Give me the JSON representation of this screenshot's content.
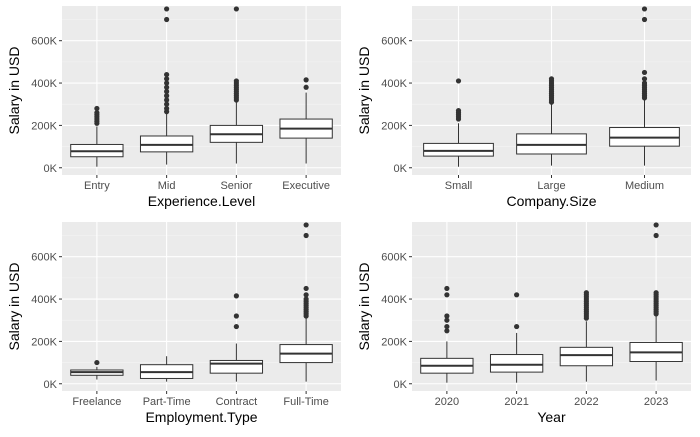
{
  "chart_data": [
    {
      "type": "box",
      "xlabel": "Experience.Level",
      "ylabel": "Salary in USD",
      "ylim": [
        0,
        760000
      ],
      "yticks": [
        0,
        200000,
        400000,
        600000
      ],
      "ytick_labels": [
        "0K",
        "200K",
        "400K",
        "600K"
      ],
      "grid": true,
      "categories": [
        "Entry",
        "Mid",
        "Senior",
        "Executive"
      ],
      "boxes": [
        {
          "min": 5000,
          "q1": 52000,
          "median": 78000,
          "q3": 110000,
          "max": 195000,
          "outliers": [
            210000,
            220000,
            230000,
            240000,
            250000,
            260000,
            280000
          ]
        },
        {
          "min": 15000,
          "q1": 75000,
          "median": 108000,
          "q3": 150000,
          "max": 255000,
          "outliers": [
            265000,
            280000,
            300000,
            320000,
            340000,
            360000,
            380000,
            400000,
            420000,
            440000,
            700000,
            750000
          ]
        },
        {
          "min": 20000,
          "q1": 120000,
          "median": 158000,
          "q3": 200000,
          "max": 315000,
          "outliers": [
            320000,
            330000,
            340000,
            350000,
            360000,
            370000,
            380000,
            390000,
            400000,
            410000,
            750000
          ]
        },
        {
          "min": 20000,
          "q1": 140000,
          "median": 185000,
          "q3": 230000,
          "max": 355000,
          "outliers": [
            380000,
            415000
          ]
        }
      ]
    },
    {
      "type": "box",
      "xlabel": "Company.Size",
      "ylabel": "Salary in USD",
      "ylim": [
        0,
        760000
      ],
      "yticks": [
        0,
        200000,
        400000,
        600000
      ],
      "ytick_labels": [
        "0K",
        "200K",
        "400K",
        "600K"
      ],
      "grid": true,
      "categories": [
        "Small",
        "Large",
        "Medium"
      ],
      "boxes": [
        {
          "min": 5000,
          "q1": 55000,
          "median": 80000,
          "q3": 115000,
          "max": 210000,
          "outliers": [
            230000,
            240000,
            250000,
            260000,
            270000,
            410000
          ]
        },
        {
          "min": 10000,
          "q1": 65000,
          "median": 108000,
          "q3": 160000,
          "max": 300000,
          "outliers": [
            310000,
            320000,
            330000,
            340000,
            350000,
            360000,
            370000,
            380000,
            390000,
            400000,
            410000,
            420000
          ]
        },
        {
          "min": 10000,
          "q1": 102000,
          "median": 142000,
          "q3": 190000,
          "max": 320000,
          "outliers": [
            330000,
            340000,
            350000,
            360000,
            370000,
            380000,
            390000,
            400000,
            420000,
            450000,
            700000,
            750000
          ]
        }
      ]
    },
    {
      "type": "box",
      "xlabel": "Employment.Type",
      "ylabel": "Salary in USD",
      "ylim": [
        0,
        760000
      ],
      "yticks": [
        0,
        200000,
        400000,
        600000
      ],
      "ytick_labels": [
        "0K",
        "200K",
        "400K",
        "600K"
      ],
      "grid": true,
      "categories": [
        "Freelance",
        "Part-Time",
        "Contract",
        "Full-Time"
      ],
      "boxes": [
        {
          "min": 20000,
          "q1": 40000,
          "median": 55000,
          "q3": 65000,
          "max": 80000,
          "outliers": [
            100000
          ]
        },
        {
          "min": 10000,
          "q1": 25000,
          "median": 55000,
          "q3": 90000,
          "max": 130000,
          "outliers": []
        },
        {
          "min": 10000,
          "q1": 50000,
          "median": 95000,
          "q3": 110000,
          "max": 190000,
          "outliers": [
            270000,
            320000,
            415000
          ]
        },
        {
          "min": 10000,
          "q1": 100000,
          "median": 142000,
          "q3": 185000,
          "max": 315000,
          "outliers": [
            320000,
            330000,
            340000,
            350000,
            360000,
            370000,
            380000,
            390000,
            400000,
            420000,
            450000,
            700000,
            750000
          ]
        }
      ]
    },
    {
      "type": "box",
      "xlabel": "Year",
      "ylabel": "Salary in USD",
      "ylim": [
        0,
        760000
      ],
      "yticks": [
        0,
        200000,
        400000,
        600000
      ],
      "ytick_labels": [
        "0K",
        "200K",
        "400K",
        "600K"
      ],
      "grid": true,
      "categories": [
        "2020",
        "2021",
        "2022",
        "2023"
      ],
      "boxes": [
        {
          "min": 5000,
          "q1": 50000,
          "median": 85000,
          "q3": 120000,
          "max": 200000,
          "outliers": [
            250000,
            270000,
            300000,
            320000,
            420000,
            450000
          ]
        },
        {
          "min": 5000,
          "q1": 55000,
          "median": 90000,
          "q3": 138000,
          "max": 240000,
          "outliers": [
            270000,
            420000
          ]
        },
        {
          "min": 10000,
          "q1": 85000,
          "median": 135000,
          "q3": 172000,
          "max": 295000,
          "outliers": [
            310000,
            320000,
            330000,
            340000,
            350000,
            360000,
            370000,
            380000,
            390000,
            400000,
            410000,
            420000,
            430000
          ]
        },
        {
          "min": 15000,
          "q1": 105000,
          "median": 148000,
          "q3": 195000,
          "max": 325000,
          "outliers": [
            330000,
            340000,
            350000,
            360000,
            370000,
            380000,
            390000,
            400000,
            410000,
            420000,
            430000,
            700000,
            750000
          ]
        }
      ]
    }
  ]
}
